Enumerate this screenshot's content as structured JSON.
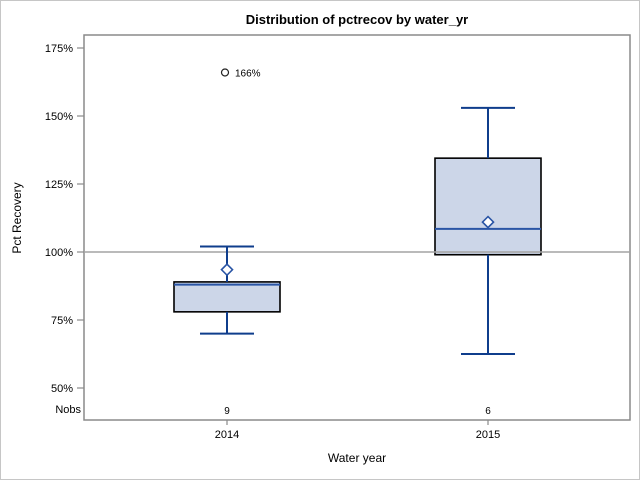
{
  "title": "Distribution of pctrecov by water_yr",
  "y_axis": {
    "label": "Pct Recovery",
    "ticks": [
      {
        "value": 175,
        "label": "175%"
      },
      {
        "value": 150,
        "label": "150%"
      },
      {
        "value": 125,
        "label": "125%"
      },
      {
        "value": 100,
        "label": "100%"
      },
      {
        "value": 75,
        "label": "75%"
      },
      {
        "value": 50,
        "label": "50%"
      }
    ]
  },
  "x_axis": {
    "label": "Water year",
    "categories": [
      "2014",
      "2015"
    ]
  },
  "nobs": {
    "label": "Nobs",
    "values": [
      "9",
      "6"
    ]
  },
  "chart_data": {
    "type": "boxplot",
    "title": "Distribution of pctrecov by water_yr",
    "xlabel": "Water year",
    "ylabel": "Pct Recovery",
    "y_unit": "%",
    "ylim": [
      40,
      180
    ],
    "grid": false,
    "reference_line": 100,
    "categories": [
      "2014",
      "2015"
    ],
    "series": [
      {
        "category": "2014",
        "nobs": 9,
        "whisker_low": 70,
        "q1": 78,
        "median": 88,
        "q3": 89,
        "whisker_high": 102,
        "mean": 93.5,
        "outliers": [
          {
            "value": 166,
            "label": "166%"
          }
        ]
      },
      {
        "category": "2015",
        "nobs": 6,
        "whisker_low": 62.5,
        "q1": 99,
        "median": 108.5,
        "q3": 134.5,
        "whisker_high": 153,
        "mean": 111,
        "outliers": []
      }
    ]
  },
  "colors": {
    "box_fill": "#ccd6e8",
    "box_stroke": "#000000",
    "median": "#2a55a5",
    "whisker": "#0f3d8c",
    "mean_marker": "#2a55a5",
    "outlier": "#222222",
    "refline": "#a3a3a3",
    "frame": "#8a8a8a",
    "text": "#000000"
  }
}
